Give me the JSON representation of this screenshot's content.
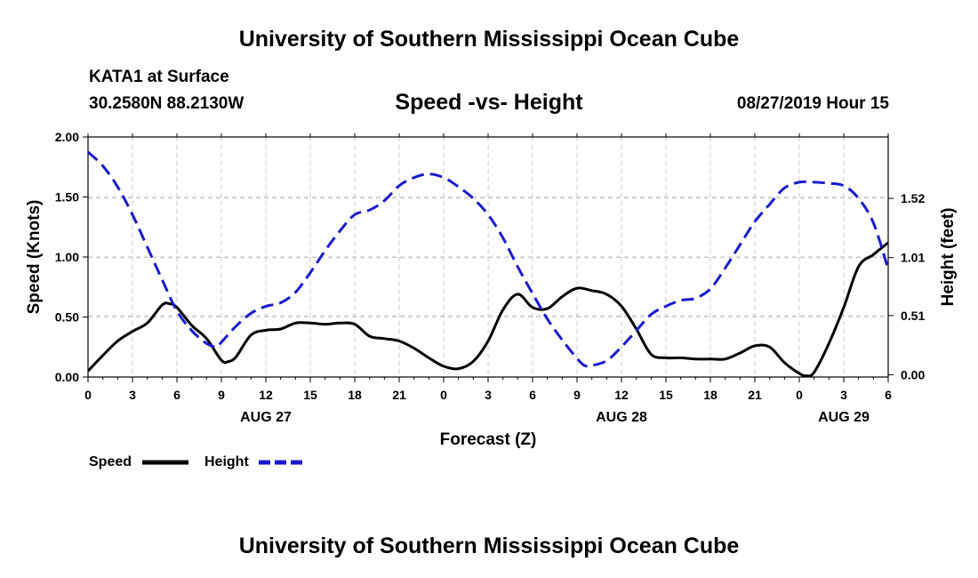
{
  "header": {
    "title": "University of Southern Mississippi Ocean Cube",
    "station": "KATA1 at Surface",
    "coords": "30.2580N 88.2130W",
    "subtitle": "Speed -vs- Height",
    "datetime": "08/27/2019 Hour 15"
  },
  "footer": {
    "title": "University of Southern Mississippi Ocean Cube"
  },
  "chart_data": {
    "type": "line",
    "title": "Speed -vs- Height",
    "xlabel": "Forecast (Z)",
    "ylabel": "Speed (Knots)",
    "y2label": "Height (feet)",
    "xlim": [
      0,
      54
    ],
    "ylim": [
      0,
      2.0
    ],
    "y2lim": [
      -0.02,
      2.05
    ],
    "x_ticks": [
      0,
      3,
      6,
      9,
      12,
      15,
      18,
      21,
      24,
      27,
      30,
      33,
      36,
      39,
      42,
      45,
      48,
      51,
      54
    ],
    "x_tick_labels": [
      "0",
      "3",
      "6",
      "9",
      "12",
      "15",
      "18",
      "21",
      "0",
      "3",
      "6",
      "9",
      "12",
      "15",
      "18",
      "21",
      "0",
      "3",
      "6"
    ],
    "day_labels": [
      {
        "x": 12,
        "label": "AUG 27"
      },
      {
        "x": 36,
        "label": "AUG 28"
      },
      {
        "x": 51,
        "label": "AUG 29"
      }
    ],
    "y_ticks": [
      0,
      0.5,
      1.0,
      1.5,
      2.0
    ],
    "y_tick_labels": [
      "0.00",
      "0.50",
      "1.00",
      "1.50",
      "2.00"
    ],
    "y2_ticks": [
      0.0,
      0.51,
      1.01,
      1.52
    ],
    "y2_tick_labels": [
      "0.00",
      "0.51",
      "1.01",
      "1.52"
    ],
    "grid": true,
    "legend": [
      "Speed",
      "Height"
    ],
    "series": [
      {
        "name": "Speed",
        "axis": "left",
        "color": "#000000",
        "dash": "solid",
        "x": [
          0,
          1,
          2,
          3,
          4,
          5,
          5.5,
          6,
          7,
          8,
          9,
          9.5,
          10,
          11,
          12,
          13,
          14,
          15,
          16,
          17,
          18,
          19,
          20,
          21,
          22,
          23,
          24,
          25,
          26,
          27,
          28,
          29,
          30,
          31,
          32,
          33,
          34,
          35,
          36,
          37,
          38,
          39,
          40,
          41,
          42,
          43,
          44,
          45,
          46,
          47,
          48,
          48.5,
          49,
          50,
          51,
          52,
          53,
          54
        ],
        "values": [
          0.05,
          0.18,
          0.3,
          0.38,
          0.45,
          0.6,
          0.61,
          0.58,
          0.43,
          0.32,
          0.14,
          0.13,
          0.17,
          0.35,
          0.39,
          0.4,
          0.45,
          0.45,
          0.44,
          0.45,
          0.44,
          0.34,
          0.32,
          0.3,
          0.24,
          0.16,
          0.09,
          0.07,
          0.13,
          0.3,
          0.56,
          0.69,
          0.58,
          0.57,
          0.67,
          0.74,
          0.72,
          0.69,
          0.59,
          0.4,
          0.19,
          0.16,
          0.16,
          0.15,
          0.15,
          0.15,
          0.2,
          0.26,
          0.25,
          0.12,
          0.03,
          0.01,
          0.04,
          0.28,
          0.58,
          0.92,
          1.02,
          1.12
        ]
      },
      {
        "name": "Height",
        "axis": "right",
        "color": "#1a1acc",
        "dash": "dashed",
        "x": [
          0,
          1,
          2,
          3,
          4,
          5,
          6,
          7,
          8,
          8.7,
          9,
          10,
          11,
          12,
          13,
          14,
          15,
          16,
          17,
          18,
          19,
          20,
          21,
          22,
          23,
          24,
          25,
          26,
          27,
          28,
          29,
          30,
          31,
          32,
          33,
          33.5,
          34,
          35,
          36,
          37,
          38,
          39,
          40,
          41,
          42,
          43,
          44,
          45,
          46,
          47,
          48,
          49,
          50,
          51,
          52,
          53,
          54
        ],
        "values": [
          1.92,
          1.8,
          1.62,
          1.38,
          1.1,
          0.82,
          0.55,
          0.38,
          0.27,
          0.24,
          0.28,
          0.42,
          0.53,
          0.59,
          0.62,
          0.71,
          0.88,
          1.07,
          1.24,
          1.38,
          1.42,
          1.5,
          1.63,
          1.7,
          1.73,
          1.7,
          1.62,
          1.52,
          1.38,
          1.18,
          0.93,
          0.7,
          0.48,
          0.3,
          0.14,
          0.08,
          0.08,
          0.12,
          0.24,
          0.38,
          0.52,
          0.59,
          0.64,
          0.66,
          0.74,
          0.92,
          1.12,
          1.32,
          1.47,
          1.61,
          1.66,
          1.66,
          1.65,
          1.63,
          1.52,
          1.31,
          0.91
        ]
      }
    ]
  }
}
